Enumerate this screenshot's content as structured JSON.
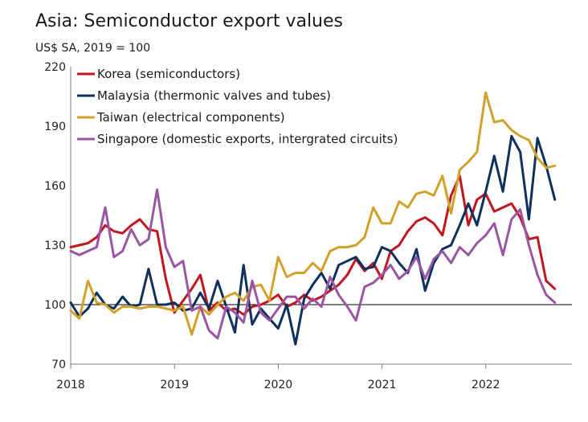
{
  "chart_data": {
    "type": "line",
    "title": "Asia: Semiconductor export values",
    "subtitle": "US$ SA, 2019 = 100",
    "xlabel": "",
    "ylabel": "",
    "ylim": [
      70,
      220
    ],
    "yticks": [
      70,
      100,
      130,
      160,
      190,
      220
    ],
    "xlim": [
      2018.0,
      2022.83
    ],
    "xticks": [
      2018,
      2019,
      2020,
      2021,
      2022
    ],
    "xtick_labels": [
      "2018",
      "2019",
      "2020",
      "2021",
      "2022"
    ],
    "reference_line": 100,
    "legend_position": "top-left",
    "series": [
      {
        "name": "Korea (semiconductors)",
        "color": "#c0161f",
        "start": 2018.0,
        "step": 0.0833,
        "values": [
          129,
          130,
          131,
          134,
          140,
          137,
          136,
          140,
          143,
          138,
          137,
          113,
          96,
          102,
          108,
          115,
          97,
          101,
          97,
          98,
          95,
          99,
          100,
          102,
          105,
          99,
          101,
          105,
          102,
          104,
          107,
          110,
          115,
          123,
          117,
          121,
          113,
          127,
          130,
          137,
          142,
          144,
          141,
          135,
          155,
          165,
          140,
          153,
          156,
          147,
          149,
          151,
          144,
          133,
          134,
          112,
          108
        ]
      },
      {
        "name": "Malaysia (thermonic valves and tubes)",
        "color": "#0f2f5c",
        "start": 2018.0,
        "step": 0.0833,
        "values": [
          101,
          94,
          98,
          106,
          100,
          98,
          104,
          99,
          100,
          118,
          100,
          100,
          101,
          97,
          98,
          106,
          98,
          112,
          99,
          86,
          120,
          90,
          98,
          93,
          88,
          100,
          80,
          103,
          110,
          116,
          108,
          120,
          122,
          124,
          118,
          119,
          129,
          127,
          121,
          116,
          128,
          107,
          121,
          128,
          130,
          140,
          151,
          140,
          157,
          175,
          157,
          185,
          177,
          143,
          184,
          170,
          153
        ]
      },
      {
        "name": "Taiwan (electrical components)",
        "color": "#d2a12c",
        "start": 2018.0,
        "step": 0.0833,
        "values": [
          97,
          93,
          112,
          101,
          100,
          96,
          99,
          99,
          98,
          99,
          99,
          98,
          97,
          99,
          85,
          99,
          95,
          100,
          104,
          106,
          102,
          109,
          110,
          102,
          124,
          114,
          116,
          116,
          121,
          117,
          127,
          129,
          129,
          130,
          134,
          149,
          141,
          141,
          152,
          149,
          156,
          157,
          155,
          165,
          146,
          168,
          172,
          177,
          207,
          192,
          193,
          188,
          185,
          183,
          174,
          169,
          170
        ]
      },
      {
        "name": "Singapore (domestic exports, intergrated circuits)",
        "color": "#9a56a3",
        "start": 2018.0,
        "step": 0.0833,
        "values": [
          127,
          125,
          127,
          129,
          149,
          124,
          127,
          138,
          130,
          133,
          158,
          129,
          119,
          122,
          97,
          99,
          87,
          83,
          99,
          96,
          91,
          112,
          96,
          92,
          98,
          104,
          104,
          98,
          103,
          99,
          114,
          105,
          99,
          92,
          109,
          111,
          115,
          120,
          113,
          117,
          124,
          113,
          123,
          127,
          121,
          129,
          125,
          131,
          135,
          141,
          125,
          143,
          148,
          130,
          115,
          105,
          101
        ]
      }
    ]
  }
}
